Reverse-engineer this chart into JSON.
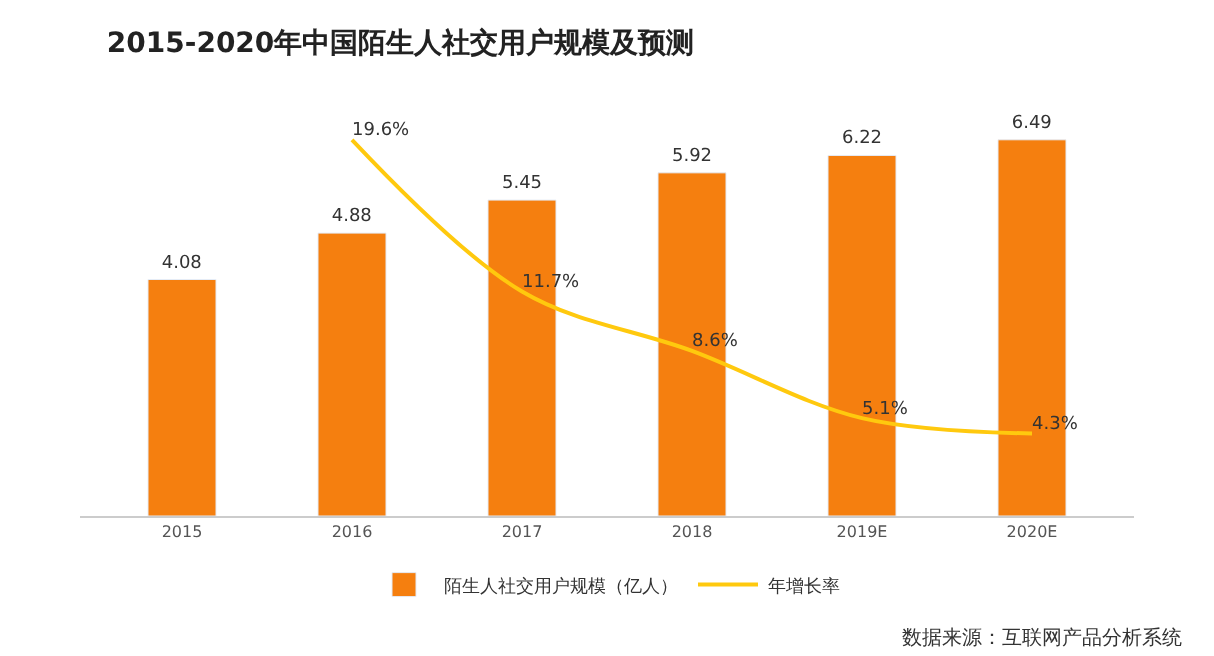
{
  "chart_data": {
    "type": "bar",
    "title": "2015-2020年中国陌生人社交用户规模及预测",
    "categories": [
      "2015",
      "2016",
      "2017",
      "2018",
      "2019E",
      "2020E"
    ],
    "series": [
      {
        "name": "陌生人社交用户规模（亿人）",
        "color": "#f57f0f",
        "values": [
          4.08,
          4.88,
          5.45,
          5.92,
          6.22,
          6.49
        ],
        "data_labels": true
      },
      {
        "name": "年增长率",
        "type": "line",
        "axis": "y2",
        "color": "#ffc90e",
        "values": [
          null,
          19.6,
          11.7,
          8.6,
          5.1,
          4.3
        ],
        "value_labels": [
          null,
          "19.6%",
          "11.7%",
          "8.6%",
          "5.1%",
          "4.3%"
        ]
      }
    ],
    "tick_labels": "x",
    "legend": "bottom",
    "marker": "none",
    "annotations": [
      "数据来源：互联网产品分析系统"
    ]
  }
}
